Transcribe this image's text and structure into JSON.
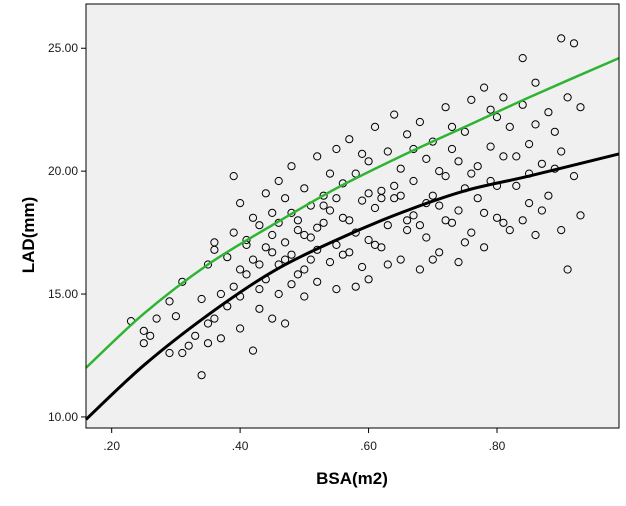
{
  "chart_data": {
    "type": "scatter",
    "title": "",
    "xlabel": "BSA(m2)",
    "ylabel": "LAD(mm)",
    "xlim": [
      0.16,
      0.99
    ],
    "ylim": [
      9.55,
      26.8
    ],
    "x_ticks": [
      0.2,
      0.4,
      0.6,
      0.8
    ],
    "x_tick_labels": [
      ".20",
      ".40",
      ".60",
      ".80"
    ],
    "y_ticks": [
      10,
      15,
      20,
      25
    ],
    "y_tick_labels": [
      "10.00",
      "15.00",
      "20.00",
      "25.00"
    ],
    "grid": false,
    "legend": "none",
    "colors": {
      "plot_background": "#f0f0f0",
      "markers": "#000000",
      "fit_lower": "#000000",
      "fit_upper": "#2eb432"
    },
    "fit_lines": [
      {
        "color": "#000000",
        "x": [
          0.16,
          0.25,
          0.35,
          0.45,
          0.55,
          0.65,
          0.75,
          0.85,
          0.99
        ],
        "y": [
          9.9,
          12.1,
          14.15,
          15.9,
          17.2,
          18.3,
          19.2,
          19.8,
          20.7
        ]
      },
      {
        "color": "#2eb432",
        "x": [
          0.16,
          0.25,
          0.35,
          0.45,
          0.55,
          0.65,
          0.75,
          0.85,
          0.99
        ],
        "y": [
          12.0,
          14.2,
          16.2,
          17.8,
          19.3,
          20.6,
          21.8,
          23.0,
          24.6
        ]
      }
    ],
    "series": [
      {
        "points": [
          [
            0.23,
            13.9
          ],
          [
            0.25,
            13.5
          ],
          [
            0.25,
            13.0
          ],
          [
            0.26,
            13.3
          ],
          [
            0.27,
            14.0
          ],
          [
            0.29,
            14.7
          ],
          [
            0.29,
            12.6
          ],
          [
            0.3,
            14.1
          ],
          [
            0.31,
            15.5
          ],
          [
            0.31,
            12.6
          ],
          [
            0.32,
            12.9
          ],
          [
            0.33,
            13.3
          ],
          [
            0.34,
            11.7
          ],
          [
            0.34,
            14.8
          ],
          [
            0.35,
            13.8
          ],
          [
            0.35,
            16.2
          ],
          [
            0.35,
            13.0
          ],
          [
            0.36,
            17.1
          ],
          [
            0.36,
            14.0
          ],
          [
            0.36,
            16.8
          ],
          [
            0.37,
            13.2
          ],
          [
            0.37,
            15.0
          ],
          [
            0.38,
            14.5
          ],
          [
            0.38,
            16.5
          ],
          [
            0.39,
            15.3
          ],
          [
            0.39,
            17.5
          ],
          [
            0.39,
            19.8
          ],
          [
            0.4,
            18.7
          ],
          [
            0.4,
            16.0
          ],
          [
            0.4,
            14.9
          ],
          [
            0.4,
            13.6
          ],
          [
            0.41,
            17.2
          ],
          [
            0.41,
            15.8
          ],
          [
            0.42,
            12.7
          ],
          [
            0.42,
            18.1
          ],
          [
            0.42,
            16.4
          ],
          [
            0.43,
            15.2
          ],
          [
            0.43,
            17.8
          ],
          [
            0.43,
            14.4
          ],
          [
            0.44,
            19.1
          ],
          [
            0.44,
            16.9
          ],
          [
            0.44,
            15.6
          ],
          [
            0.45,
            18.3
          ],
          [
            0.45,
            14.0
          ],
          [
            0.45,
            17.4
          ],
          [
            0.46,
            19.6
          ],
          [
            0.46,
            16.2
          ],
          [
            0.46,
            15.0
          ],
          [
            0.47,
            18.9
          ],
          [
            0.47,
            17.1
          ],
          [
            0.47,
            13.8
          ],
          [
            0.48,
            20.2
          ],
          [
            0.48,
            16.6
          ],
          [
            0.48,
            15.4
          ],
          [
            0.49,
            18.0
          ],
          [
            0.49,
            17.6
          ],
          [
            0.5,
            19.3
          ],
          [
            0.5,
            16.0
          ],
          [
            0.5,
            14.9
          ],
          [
            0.51,
            18.6
          ],
          [
            0.51,
            17.3
          ],
          [
            0.52,
            20.6
          ],
          [
            0.52,
            16.8
          ],
          [
            0.52,
            15.5
          ],
          [
            0.53,
            19.0
          ],
          [
            0.53,
            17.9
          ],
          [
            0.54,
            18.4
          ],
          [
            0.54,
            16.3
          ],
          [
            0.55,
            20.9
          ],
          [
            0.55,
            17.0
          ],
          [
            0.55,
            15.2
          ],
          [
            0.56,
            19.5
          ],
          [
            0.56,
            18.1
          ],
          [
            0.57,
            16.7
          ],
          [
            0.57,
            21.3
          ],
          [
            0.58,
            17.5
          ],
          [
            0.58,
            19.9
          ],
          [
            0.59,
            18.8
          ],
          [
            0.59,
            16.1
          ],
          [
            0.6,
            20.4
          ],
          [
            0.6,
            17.2
          ],
          [
            0.6,
            15.6
          ],
          [
            0.61,
            21.8
          ],
          [
            0.61,
            18.5
          ],
          [
            0.62,
            19.2
          ],
          [
            0.62,
            16.9
          ],
          [
            0.63,
            20.8
          ],
          [
            0.63,
            17.8
          ],
          [
            0.64,
            22.3
          ],
          [
            0.64,
            18.9
          ],
          [
            0.65,
            16.4
          ],
          [
            0.65,
            20.1
          ],
          [
            0.66,
            21.5
          ],
          [
            0.66,
            17.6
          ],
          [
            0.67,
            19.6
          ],
          [
            0.67,
            18.2
          ],
          [
            0.68,
            22.0
          ],
          [
            0.68,
            16.0
          ],
          [
            0.69,
            20.5
          ],
          [
            0.69,
            17.3
          ],
          [
            0.7,
            19.0
          ],
          [
            0.7,
            21.2
          ],
          [
            0.71,
            18.6
          ],
          [
            0.71,
            16.7
          ],
          [
            0.72,
            22.6
          ],
          [
            0.72,
            19.8
          ],
          [
            0.73,
            17.9
          ],
          [
            0.73,
            20.9
          ],
          [
            0.74,
            18.4
          ],
          [
            0.74,
            16.3
          ],
          [
            0.75,
            21.6
          ],
          [
            0.75,
            19.3
          ],
          [
            0.76,
            22.9
          ],
          [
            0.76,
            17.5
          ],
          [
            0.77,
            20.2
          ],
          [
            0.77,
            18.9
          ],
          [
            0.78,
            23.4
          ],
          [
            0.78,
            16.9
          ],
          [
            0.79,
            21.0
          ],
          [
            0.79,
            19.6
          ],
          [
            0.8,
            22.2
          ],
          [
            0.8,
            18.1
          ],
          [
            0.81,
            23.0
          ],
          [
            0.81,
            20.6
          ],
          [
            0.82,
            17.6
          ],
          [
            0.82,
            21.8
          ],
          [
            0.83,
            19.4
          ],
          [
            0.84,
            24.6
          ],
          [
            0.84,
            22.7
          ],
          [
            0.85,
            18.7
          ],
          [
            0.85,
            21.1
          ],
          [
            0.86,
            23.6
          ],
          [
            0.86,
            17.4
          ],
          [
            0.87,
            20.3
          ],
          [
            0.88,
            22.4
          ],
          [
            0.88,
            19.0
          ],
          [
            0.89,
            21.6
          ],
          [
            0.9,
            25.4
          ],
          [
            0.9,
            20.8
          ],
          [
            0.91,
            23.0
          ],
          [
            0.91,
            16.0
          ],
          [
            0.92,
            25.2
          ],
          [
            0.92,
            19.8
          ],
          [
            0.93,
            22.6
          ],
          [
            0.93,
            18.2
          ],
          [
            0.41,
            17.0
          ],
          [
            0.43,
            16.2
          ],
          [
            0.45,
            16.7
          ],
          [
            0.46,
            17.9
          ],
          [
            0.48,
            18.3
          ],
          [
            0.49,
            15.8
          ],
          [
            0.5,
            17.4
          ],
          [
            0.51,
            16.4
          ],
          [
            0.53,
            18.6
          ],
          [
            0.54,
            19.9
          ],
          [
            0.56,
            16.6
          ],
          [
            0.57,
            18.0
          ],
          [
            0.58,
            15.3
          ],
          [
            0.59,
            20.7
          ],
          [
            0.61,
            17.0
          ],
          [
            0.62,
            18.9
          ],
          [
            0.63,
            16.2
          ],
          [
            0.64,
            19.4
          ],
          [
            0.66,
            18.0
          ],
          [
            0.67,
            20.9
          ],
          [
            0.68,
            17.8
          ],
          [
            0.7,
            16.4
          ],
          [
            0.71,
            20.0
          ],
          [
            0.72,
            18.0
          ],
          [
            0.73,
            21.8
          ],
          [
            0.75,
            17.1
          ],
          [
            0.76,
            19.9
          ],
          [
            0.78,
            18.3
          ],
          [
            0.79,
            22.5
          ],
          [
            0.81,
            17.9
          ],
          [
            0.83,
            20.6
          ],
          [
            0.84,
            18.0
          ],
          [
            0.86,
            21.9
          ],
          [
            0.87,
            18.4
          ],
          [
            0.89,
            20.1
          ],
          [
            0.47,
            16.4
          ],
          [
            0.52,
            17.7
          ],
          [
            0.55,
            18.9
          ],
          [
            0.6,
            19.1
          ],
          [
            0.65,
            19.0
          ],
          [
            0.69,
            18.7
          ],
          [
            0.74,
            20.4
          ],
          [
            0.8,
            19.4
          ],
          [
            0.85,
            19.9
          ],
          [
            0.9,
            17.6
          ]
        ]
      }
    ]
  }
}
